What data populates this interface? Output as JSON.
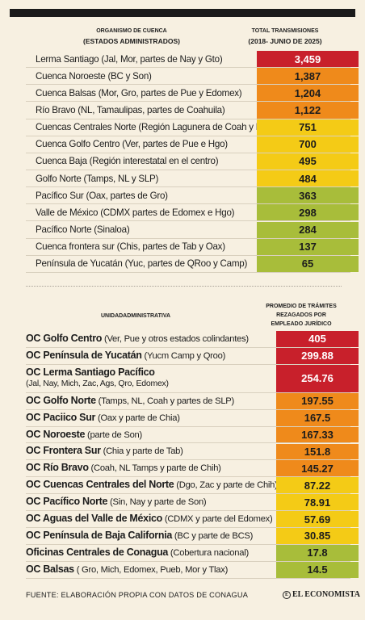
{
  "colors": {
    "red": "#c8202b",
    "orange": "#ef8a1b",
    "yellow": "#f4cb16",
    "green": "#a8bd3a"
  },
  "table1": {
    "header_left": "ORGANISMO DE CUENCA",
    "header_left_sub": "(ESTADOS ADMINISTRADOS)",
    "header_right": "TOTAL TRANSMISIONES",
    "header_right_sub": "(2018- JUNIO DE 2025)",
    "rows": [
      {
        "label": "Lerma Santiago (Jal, Mor, partes de Nay y Gto)",
        "value": "3,459",
        "color": "red"
      },
      {
        "label": "Cuenca Noroeste (BC y Son)",
        "value": "1,387",
        "color": "orange"
      },
      {
        "label": "Cuenca Balsas (Mor, Gro, partes de Pue y Edomex)",
        "value": "1,204",
        "color": "orange"
      },
      {
        "label": "Río Bravo (NL, Tamaulipas, partes de Coahuila)",
        "value": "1,122",
        "color": "orange"
      },
      {
        "label": "Cuencas Centrales Norte (Región Lagunera de Coah y Dgo)",
        "value": "751",
        "color": "yellow"
      },
      {
        "label": "Cuenca Golfo Centro (Ver, partes de Pue e Hgo)",
        "value": "700",
        "color": "yellow"
      },
      {
        "label": "Cuenca Baja (Región interestatal en el centro)",
        "value": "495",
        "color": "yellow"
      },
      {
        "label": "Golfo Norte (Tamps, NL y SLP)",
        "value": "484",
        "color": "yellow"
      },
      {
        "label": "Pacífico Sur (Oax, partes de Gro)",
        "value": "363",
        "color": "green"
      },
      {
        "label": "Valle de México (CDMX partes de Edomex e Hgo)",
        "value": "298",
        "color": "green"
      },
      {
        "label": "Pacífico Norte (Sinaloa)",
        "value": "284",
        "color": "green"
      },
      {
        "label": "Cuenca frontera sur (Chis, partes de Tab y Oax)",
        "value": "137",
        "color": "green"
      },
      {
        "label": "Península de Yucatán (Yuc, partes de QRoo y Camp)",
        "value": "65",
        "color": "green"
      }
    ]
  },
  "table2": {
    "header_left": "UNIDADADMINISTRATIVA",
    "header_right_1": "PROMEDIO DE TRÁMITES",
    "header_right_2": "REZAGADOS POR",
    "header_right_3": "EMPLEADO JURÍDICO",
    "rows": [
      {
        "name": "OC Golfo Centro",
        "detail": " (Ver, Pue y otros estados colindantes)",
        "value": "405",
        "color": "red"
      },
      {
        "name": "OC Península de Yucatán",
        "detail": " (Yucm Camp y Qroo)",
        "value": "299.88",
        "color": "red"
      },
      {
        "name": "OC Lerma Santiago Pacífico",
        "detail": "(Jal, Nay, Mich, Zac, Ags, Qro, Edomex)",
        "value": "254.76",
        "color": "red"
      },
      {
        "name": "OC Golfo Norte",
        "detail": " (Tamps, NL, Coah y partes de SLP)",
        "value": "197.55",
        "color": "orange"
      },
      {
        "name": "OC Paciico Sur",
        "detail": " (Oax y parte de Chia)",
        "value": "167.5",
        "color": "orange"
      },
      {
        "name": "OC Noroeste",
        "detail": " (parte de Son)",
        "value": "167.33",
        "color": "orange"
      },
      {
        "name": "OC Frontera Sur",
        "detail": " (Chia y parte de Tab)",
        "value": "151.8",
        "color": "orange"
      },
      {
        "name": "OC Río Bravo",
        "detail": " (Coah, NL Tamps y parte de Chih)",
        "value": "145.27",
        "color": "orange"
      },
      {
        "name": "OC Cuencas Centrales del Norte",
        "detail": " (Dgo, Zac y parte de Chih)",
        "value": "87.22",
        "color": "yellow"
      },
      {
        "name": "OC Pacífico Norte",
        "detail": " (Sin, Nay y parte de Son)",
        "value": "78.91",
        "color": "yellow"
      },
      {
        "name": "OC Aguas del Valle de México",
        "detail": " (CDMX y parte del Edomex)",
        "value": "57.69",
        "color": "yellow"
      },
      {
        "name": "OC Península de Baja California",
        "detail": " (BC y parte de BCS)",
        "value": "30.85",
        "color": "yellow"
      },
      {
        "name": "Oficinas Centrales de Conagua",
        "detail": " (Cobertura nacional)",
        "value": "17.8",
        "color": "green"
      },
      {
        "name": "OC Balsas",
        "detail": " ( Gro, Mich, Edomex, Pueb, Mor y Tlax)",
        "value": "14.5",
        "color": "green"
      }
    ]
  },
  "footer": {
    "source": "FUENTE: ELABORACIÓN PROPIA CON DATOS DE CONAGUA",
    "brand": "EL ECONOMISTA",
    "brand_logo": "E"
  }
}
